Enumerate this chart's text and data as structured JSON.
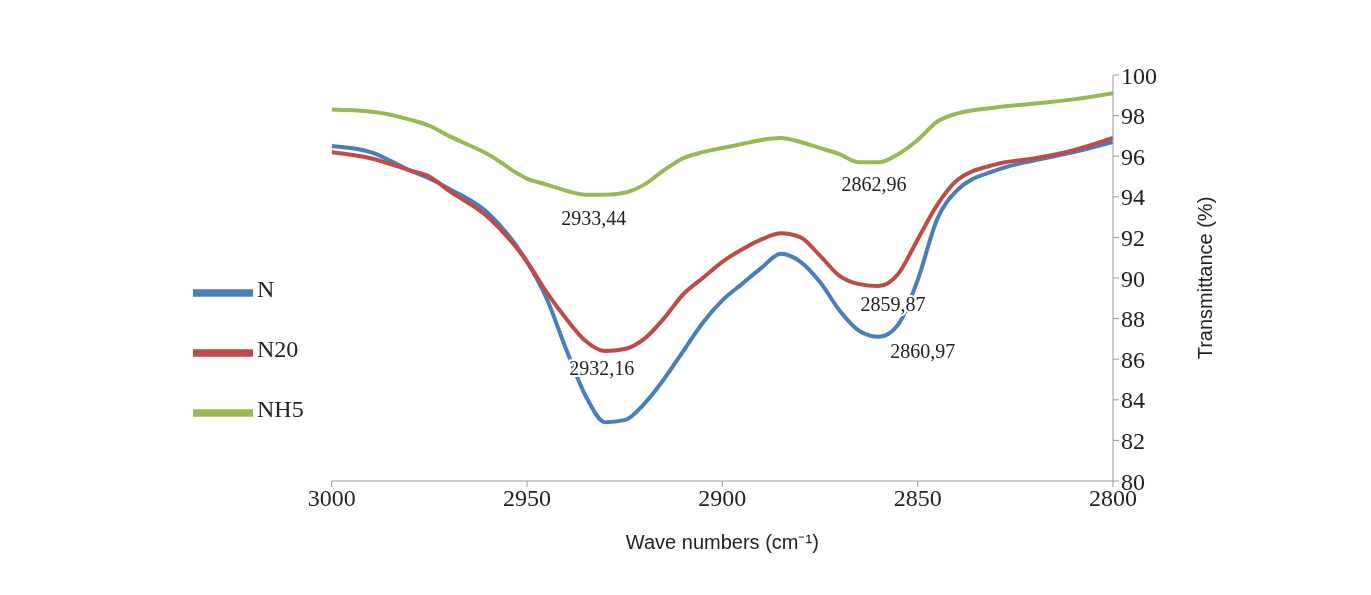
{
  "chart_data": {
    "type": "line",
    "xlabel": "Wave numbers (cm⁻¹)",
    "ylabel": "Transmittance (%)",
    "x": [
      3000,
      2990,
      2980,
      2975,
      2970,
      2960,
      2950,
      2945,
      2940,
      2935,
      2930,
      2925,
      2920,
      2915,
      2910,
      2905,
      2900,
      2895,
      2890,
      2885,
      2880,
      2875,
      2870,
      2865,
      2860,
      2855,
      2850,
      2845,
      2840,
      2830,
      2820,
      2810,
      2800
    ],
    "series": [
      {
        "name": "N",
        "color": "#4a7ebb",
        "values": [
          96.5,
          96.2,
          95.3,
          94.9,
          94.4,
          93.2,
          90.8,
          89.0,
          86.5,
          84.2,
          82.9,
          83.0,
          83.8,
          85.0,
          86.4,
          87.8,
          88.9,
          89.7,
          90.5,
          91.2,
          90.8,
          89.8,
          88.4,
          87.4,
          87.1,
          87.7,
          89.9,
          92.9,
          94.3,
          95.3,
          95.8,
          96.2,
          96.7
        ]
      },
      {
        "name": "N20",
        "color": "#be4b48",
        "values": [
          96.2,
          95.9,
          95.3,
          95.0,
          94.3,
          93.0,
          90.8,
          89.3,
          88.0,
          86.9,
          86.4,
          86.5,
          87.0,
          88.0,
          89.2,
          90.0,
          90.8,
          91.4,
          91.9,
          92.2,
          92.0,
          91.1,
          90.1,
          89.7,
          89.6,
          90.2,
          91.9,
          93.6,
          94.8,
          95.6,
          95.9,
          96.3,
          96.9
        ]
      },
      {
        "name": "NH5",
        "color": "#98b954",
        "values": [
          98.3,
          98.2,
          97.8,
          97.5,
          97.0,
          96.1,
          94.9,
          94.6,
          94.3,
          94.1,
          94.1,
          94.2,
          94.6,
          95.3,
          95.9,
          96.2,
          96.4,
          96.6,
          96.8,
          96.9,
          96.7,
          96.4,
          96.1,
          95.7,
          95.7,
          96.1,
          96.8,
          97.7,
          98.1,
          98.4,
          98.6,
          98.8,
          99.1
        ]
      }
    ],
    "xlim": [
      3000,
      2800
    ],
    "xticks": [
      3000,
      2950,
      2900,
      2850,
      2800
    ],
    "ylim": [
      80,
      100
    ],
    "yticks": [
      80,
      82,
      84,
      86,
      88,
      90,
      92,
      94,
      96,
      98,
      100
    ],
    "annotations": [
      {
        "text": "2933,44",
        "x": 2933.44,
        "y": 94.1
      },
      {
        "text": "2932,16",
        "x": 2932.16,
        "y": 86.4
      },
      {
        "text": "2862,96",
        "x": 2862.96,
        "y": 95.7
      },
      {
        "text": "2859,87",
        "x": 2859.87,
        "y": 89.6
      },
      {
        "text": "2860,97",
        "x": 2860.97,
        "y": 87.1
      }
    ],
    "grid": false,
    "legend": "left",
    "marker": "none",
    "line_style": "solid"
  }
}
